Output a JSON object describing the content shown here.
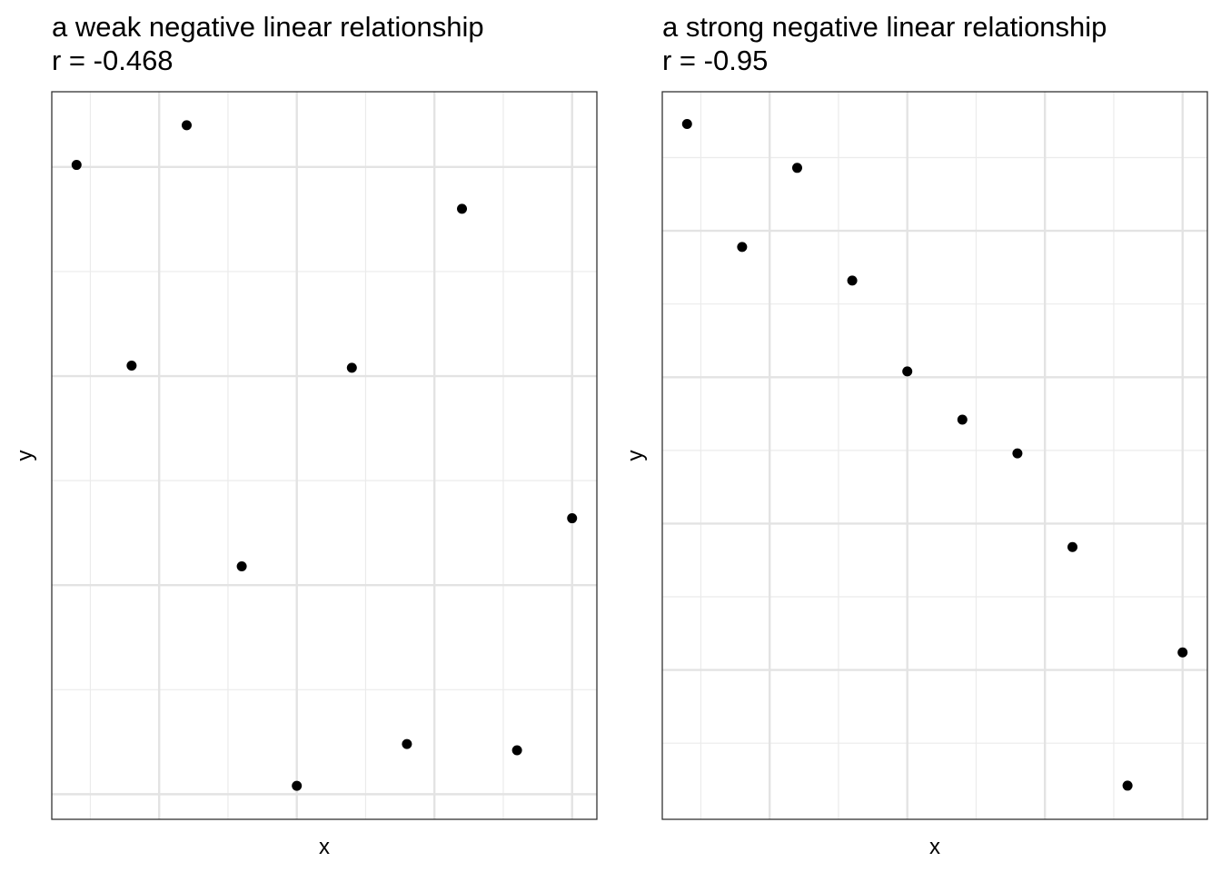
{
  "chart_data": [
    {
      "type": "scatter",
      "title": "a weak negative linear relationship",
      "subtitle": "r = -0.468",
      "x_label": "x",
      "y_label": "y",
      "x": [
        1,
        2,
        3,
        4,
        5,
        6,
        7,
        8,
        9,
        10
      ],
      "values": [
        3.01,
        2.05,
        3.2,
        1.09,
        0.04,
        2.04,
        0.24,
        2.8,
        0.21,
        1.32
      ],
      "color": "#000000",
      "xlim": [
        0.55,
        10.45
      ],
      "xticks": [
        2.5,
        5,
        7.5,
        10
      ],
      "x_minor_ticks": [
        1.25,
        3.75,
        6.25,
        8.75
      ],
      "ylim": [
        -0.12,
        3.36
      ],
      "yticks": [
        0,
        1,
        2,
        3
      ],
      "y_minor_ticks": [
        0.5,
        1.5,
        2.5
      ],
      "grid": true
    },
    {
      "type": "scatter",
      "title": "a strong negative linear relationship",
      "subtitle": "r = -0.95",
      "x_label": "x",
      "y_label": "y",
      "x": [
        1,
        2,
        3,
        4,
        5,
        6,
        7,
        8,
        9,
        10
      ],
      "values": [
        3.73,
        2.89,
        3.43,
        2.66,
        2.04,
        1.71,
        1.48,
        0.84,
        -0.79,
        0.12
      ],
      "color": "#000000",
      "xlim": [
        0.55,
        10.45
      ],
      "xticks": [
        2.5,
        5,
        7.5,
        10
      ],
      "x_minor_ticks": [
        1.25,
        3.75,
        6.25,
        8.75
      ],
      "ylim": [
        -1.02,
        3.95
      ],
      "yticks": [
        0,
        1,
        2,
        3
      ],
      "y_minor_ticks": [
        -0.5,
        0.5,
        1.5,
        2.5,
        3.5
      ],
      "grid": true
    }
  ]
}
